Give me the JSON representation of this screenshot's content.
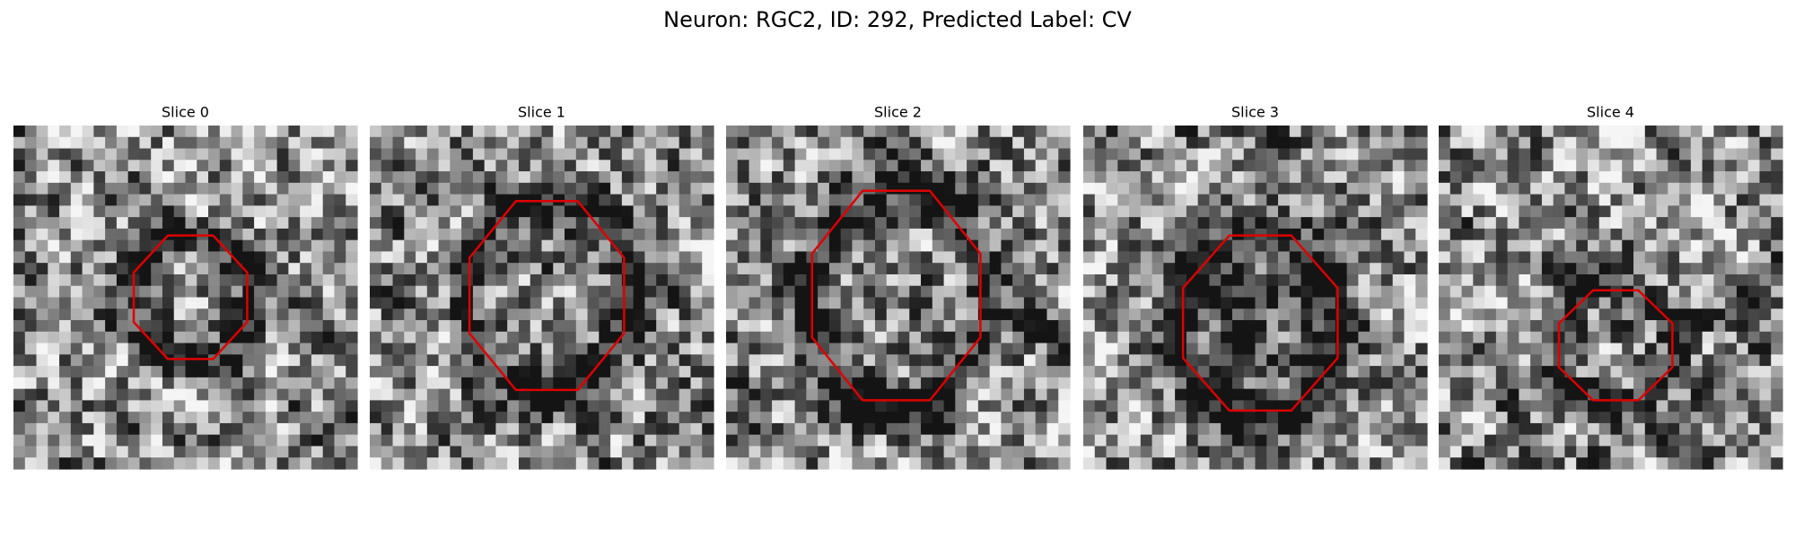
{
  "title": "Neuron: RGC2, ID: 292, Predicted Label: CV",
  "panels": [
    {
      "title": "Slice 0"
    },
    {
      "title": "Slice 1"
    },
    {
      "title": "Slice 2"
    },
    {
      "title": "Slice 3"
    },
    {
      "title": "Slice 4"
    }
  ]
}
